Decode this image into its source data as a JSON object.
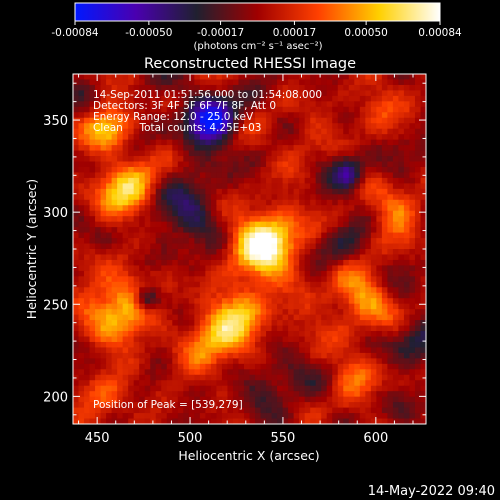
{
  "chart_data": {
    "type": "heatmap",
    "title": "Reconstructed RHESSI Image",
    "xlabel": "Heliocentric X (arcsec)",
    "ylabel": "Heliocentric Y (arcsec)",
    "xlim": [
      437,
      627
    ],
    "ylim": [
      185,
      375
    ],
    "x_ticks": [
      450,
      500,
      550,
      600
    ],
    "y_ticks": [
      200,
      250,
      300,
      350
    ],
    "colorbar": {
      "range": [
        -0.00084,
        0.00084
      ],
      "ticks": [
        "-0.00084",
        "-0.00050",
        "-0.00017",
        "0.00017",
        "0.00050",
        "0.00084"
      ],
      "tick_values": [
        -0.00084,
        -0.0005,
        -0.00017,
        0.00017,
        0.0005,
        0.00084
      ],
      "units_label": "(photons cm⁻² s⁻¹ asec⁻²)",
      "colors": [
        "#0018ff",
        "#4a00b0",
        "#202030",
        "#a00000",
        "#ff4000",
        "#ffd000",
        "#ffffff"
      ]
    },
    "annotations": [
      "14-Sep-2011 01:51:56.000 to 01:54:08.000",
      "Detectors: 3F 4F 5F 6F 7F 8F, Att 0",
      "Energy Range: 12.0 - 25.0 keV",
      "Clean     Total counts: 4.25E+03"
    ],
    "peak_label": "Position of Peak = [539,279]",
    "peak": {
      "x": 539,
      "y": 279
    },
    "sources": [
      {
        "x": 541,
        "y": 283,
        "value": 0.00084,
        "sigma": 13
      },
      {
        "x": 465,
        "y": 313,
        "value": 0.0006,
        "sigma": 11
      },
      {
        "x": 455,
        "y": 346,
        "value": 0.0005,
        "sigma": 9
      },
      {
        "x": 462,
        "y": 248,
        "value": 0.00055,
        "sigma": 14
      },
      {
        "x": 527,
        "y": 242,
        "value": 0.0005,
        "sigma": 13
      },
      {
        "x": 590,
        "y": 252,
        "value": 0.0004,
        "sigma": 14
      },
      {
        "x": 512,
        "y": 225,
        "value": 0.00035,
        "sigma": 12
      },
      {
        "x": 610,
        "y": 300,
        "value": 0.00035,
        "sigma": 10
      },
      {
        "x": 600,
        "y": 358,
        "value": 0.0003,
        "sigma": 9
      },
      {
        "x": 560,
        "y": 340,
        "value": 0.0002,
        "sigma": 10
      },
      {
        "x": 455,
        "y": 200,
        "value": 0.0003,
        "sigma": 10
      },
      {
        "x": 590,
        "y": 210,
        "value": 0.0003,
        "sigma": 9
      },
      {
        "x": 510,
        "y": 350,
        "value": -0.00084,
        "sigma": 9
      },
      {
        "x": 477,
        "y": 253,
        "value": -0.0006,
        "sigma": 5
      },
      {
        "x": 585,
        "y": 322,
        "value": -0.0005,
        "sigma": 6
      },
      {
        "x": 500,
        "y": 300,
        "value": -0.00035,
        "sigma": 12
      },
      {
        "x": 540,
        "y": 210,
        "value": -0.0003,
        "sigma": 10
      },
      {
        "x": 620,
        "y": 230,
        "value": -0.0003,
        "sigma": 9
      },
      {
        "x": 580,
        "y": 280,
        "value": -0.00025,
        "sigma": 9
      }
    ]
  },
  "footer_timestamp": "14-May-2022 09:40"
}
